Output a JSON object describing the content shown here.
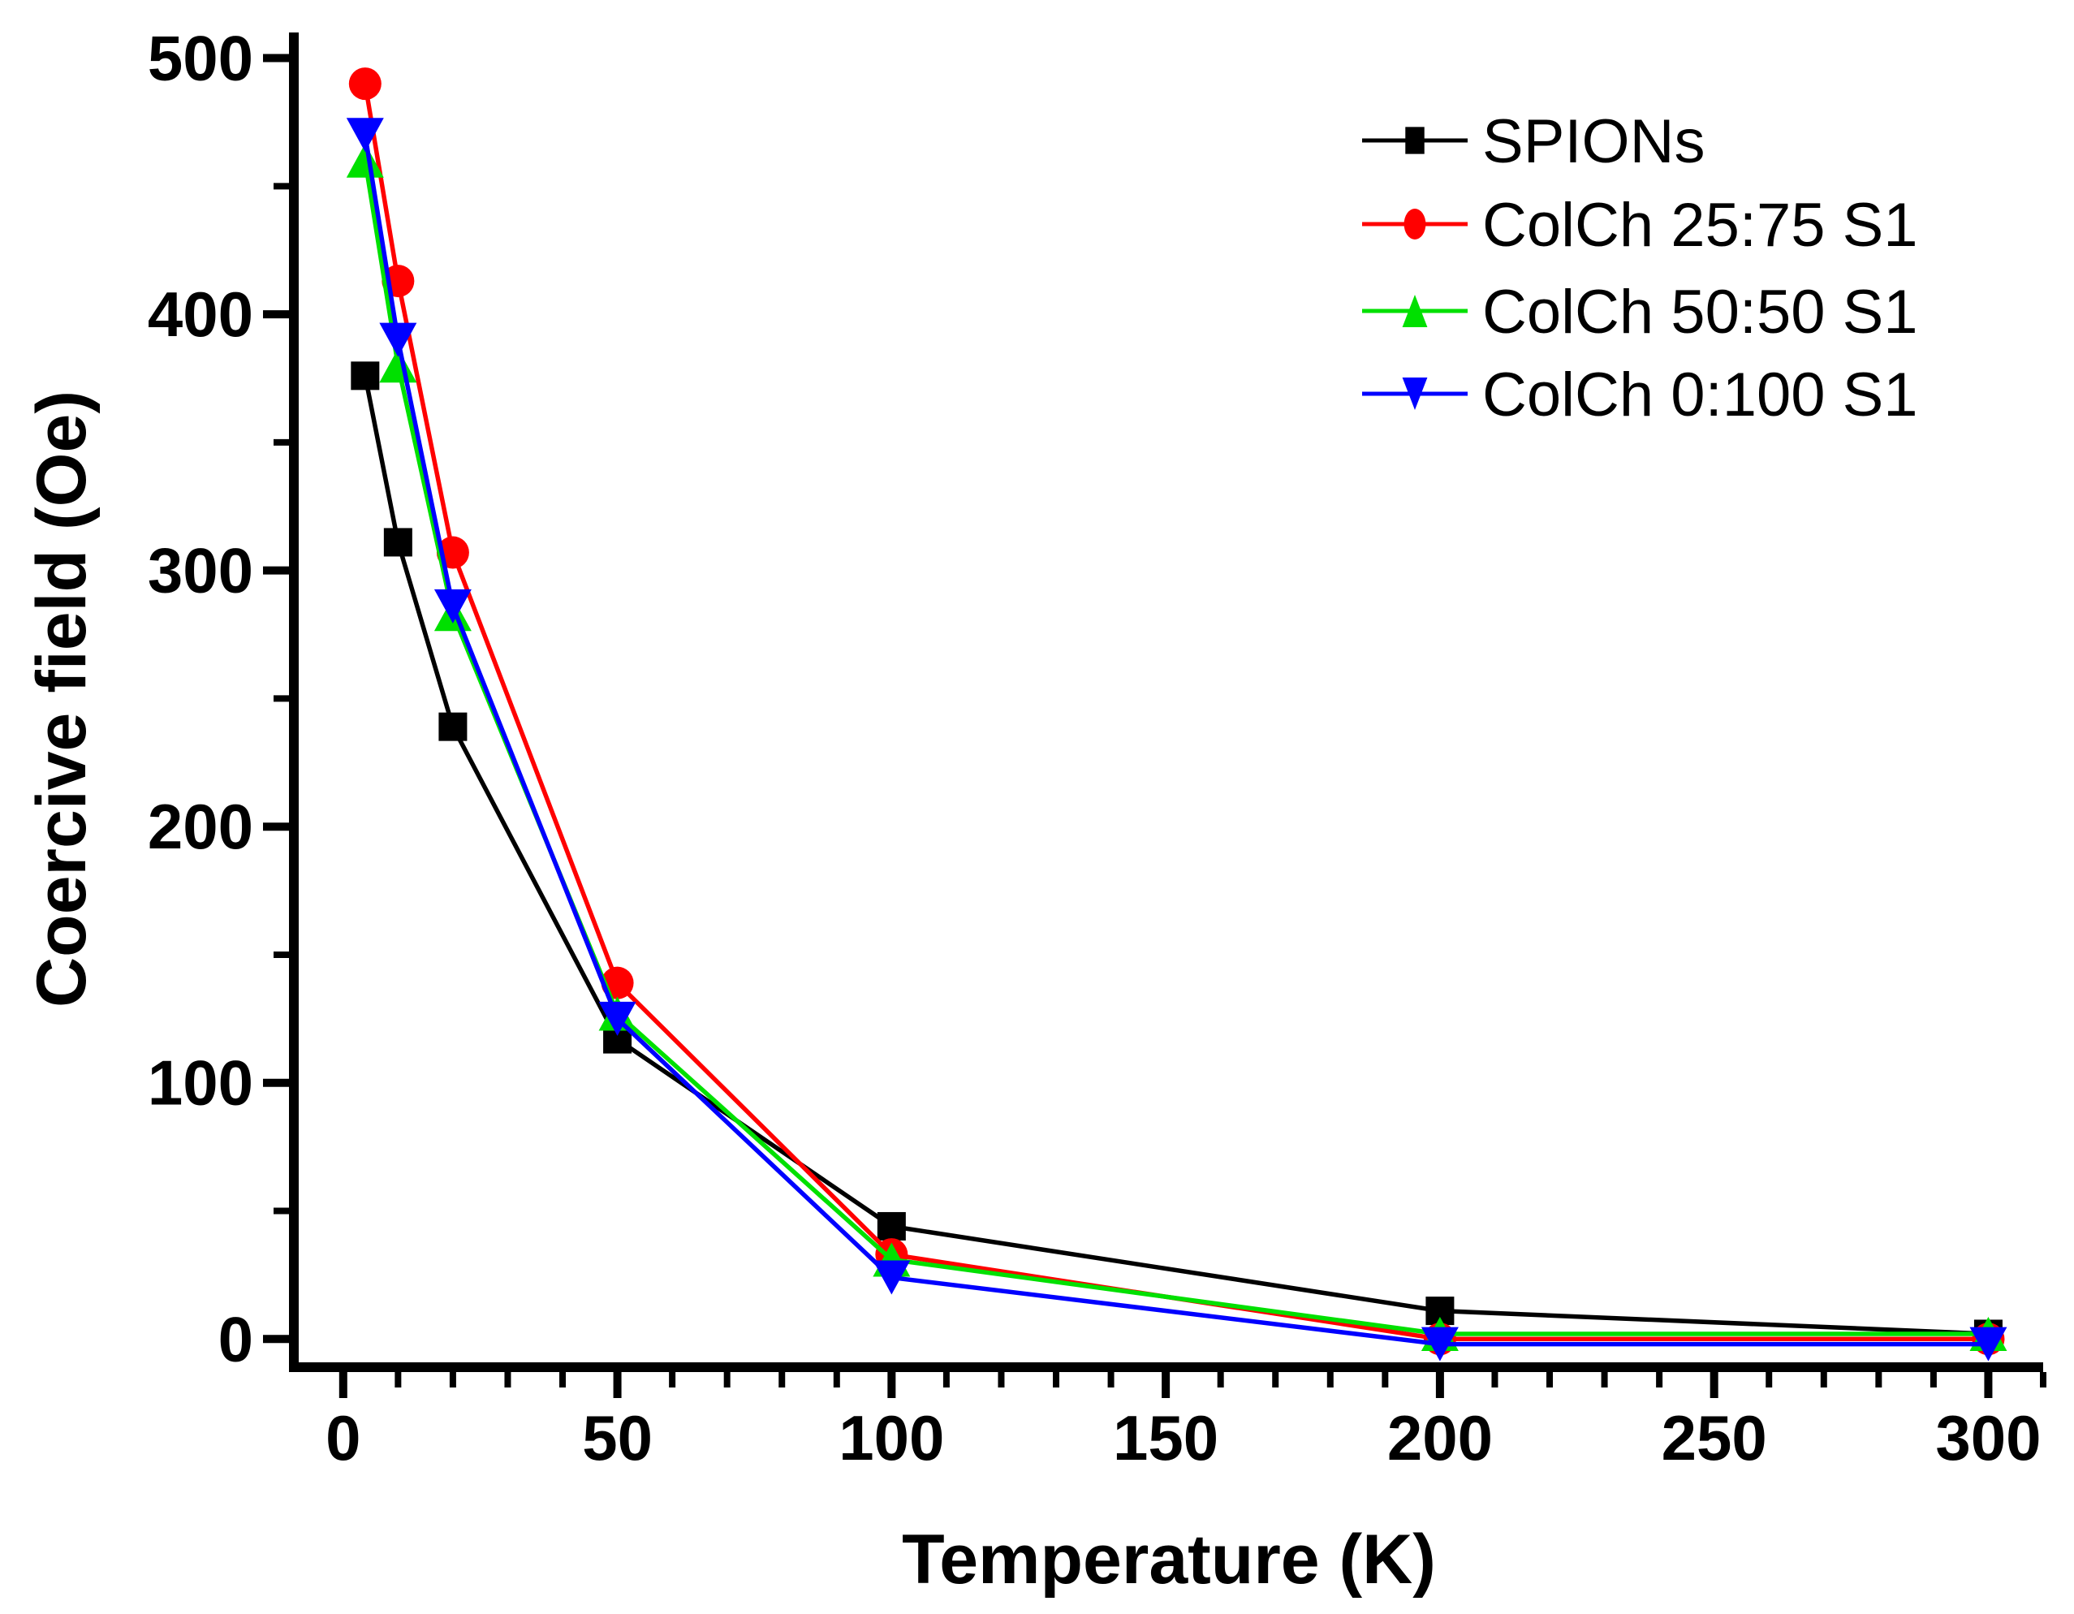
{
  "figure": {
    "background": "#ffffff",
    "axis_color": "#000000"
  },
  "chart_data": {
    "type": "line",
    "title": "",
    "xlabel": "Temperature (K)",
    "ylabel": "Coercive field (Oe)",
    "xlim": [
      -9,
      310
    ],
    "ylim": [
      -11,
      510
    ],
    "grid": false,
    "legend_position": "upper right",
    "x": [
      4,
      10,
      20,
      50,
      100,
      200,
      300
    ],
    "xticks": {
      "major": [
        0,
        50,
        100,
        150,
        200,
        250,
        300
      ],
      "labels": [
        "0",
        "50",
        "100",
        "150",
        "200",
        "250",
        "300"
      ],
      "minor_step": 10
    },
    "yticks": {
      "major": [
        0,
        100,
        200,
        300,
        400,
        500
      ],
      "labels": [
        "0",
        "100",
        "200",
        "300",
        "400",
        "500"
      ],
      "minor_step": 50
    },
    "series": [
      {
        "name": "SPIONs",
        "color": "#000000",
        "marker": "square",
        "values": [
          376,
          311,
          239,
          117,
          44,
          11,
          2
        ]
      },
      {
        "name": "ColCh 25:75 S1",
        "color": "#ff0000",
        "marker": "circle",
        "values": [
          490,
          413,
          307,
          139,
          33,
          0,
          0
        ]
      },
      {
        "name": "ColCh 50:50 S1",
        "color": "#00e000",
        "marker": "triangle-up",
        "values": [
          460,
          380,
          283,
          127,
          31,
          2,
          2
        ]
      },
      {
        "name": "ColCh 0:100 S1",
        "color": "#0000ff",
        "marker": "triangle-down",
        "values": [
          470,
          390,
          286,
          125,
          24,
          -2,
          -2
        ]
      }
    ]
  }
}
